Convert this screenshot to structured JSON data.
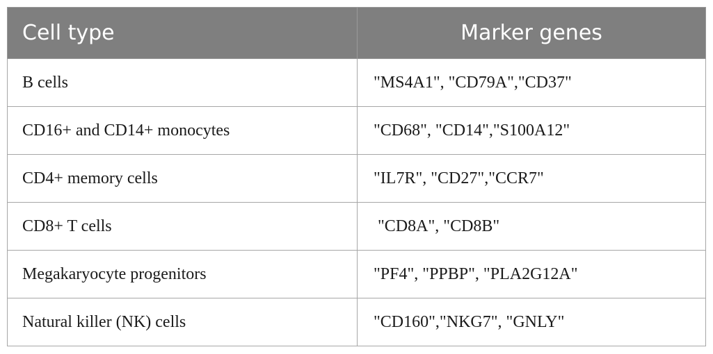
{
  "table": {
    "headers": {
      "cell_type": "Cell type",
      "marker_genes": "Marker genes"
    },
    "rows": [
      {
        "cell_type": "B cells",
        "marker_genes": "\"MS4A1\", \"CD79A\",\"CD37\""
      },
      {
        "cell_type": "CD16+ and CD14+ monocytes",
        "marker_genes": "\"CD68\", \"CD14\",\"S100A12\""
      },
      {
        "cell_type": "CD4+ memory cells",
        "marker_genes": "\"IL7R\", \"CD27\",\"CCR7\""
      },
      {
        "cell_type": "CD8+ T cells",
        "marker_genes": " \"CD8A\", \"CD8B\""
      },
      {
        "cell_type": "Megakaryocyte progenitors",
        "marker_genes": "\"PF4\", \"PPBP\", \"PLA2G12A\""
      },
      {
        "cell_type": "Natural killer (NK) cells",
        "marker_genes": "\"CD160\",\"NKG7\", \"GNLY\""
      }
    ],
    "colors": {
      "header_bg": "#7f7f7f",
      "header_text": "#ffffff",
      "grid": "#a6a6a6"
    }
  }
}
